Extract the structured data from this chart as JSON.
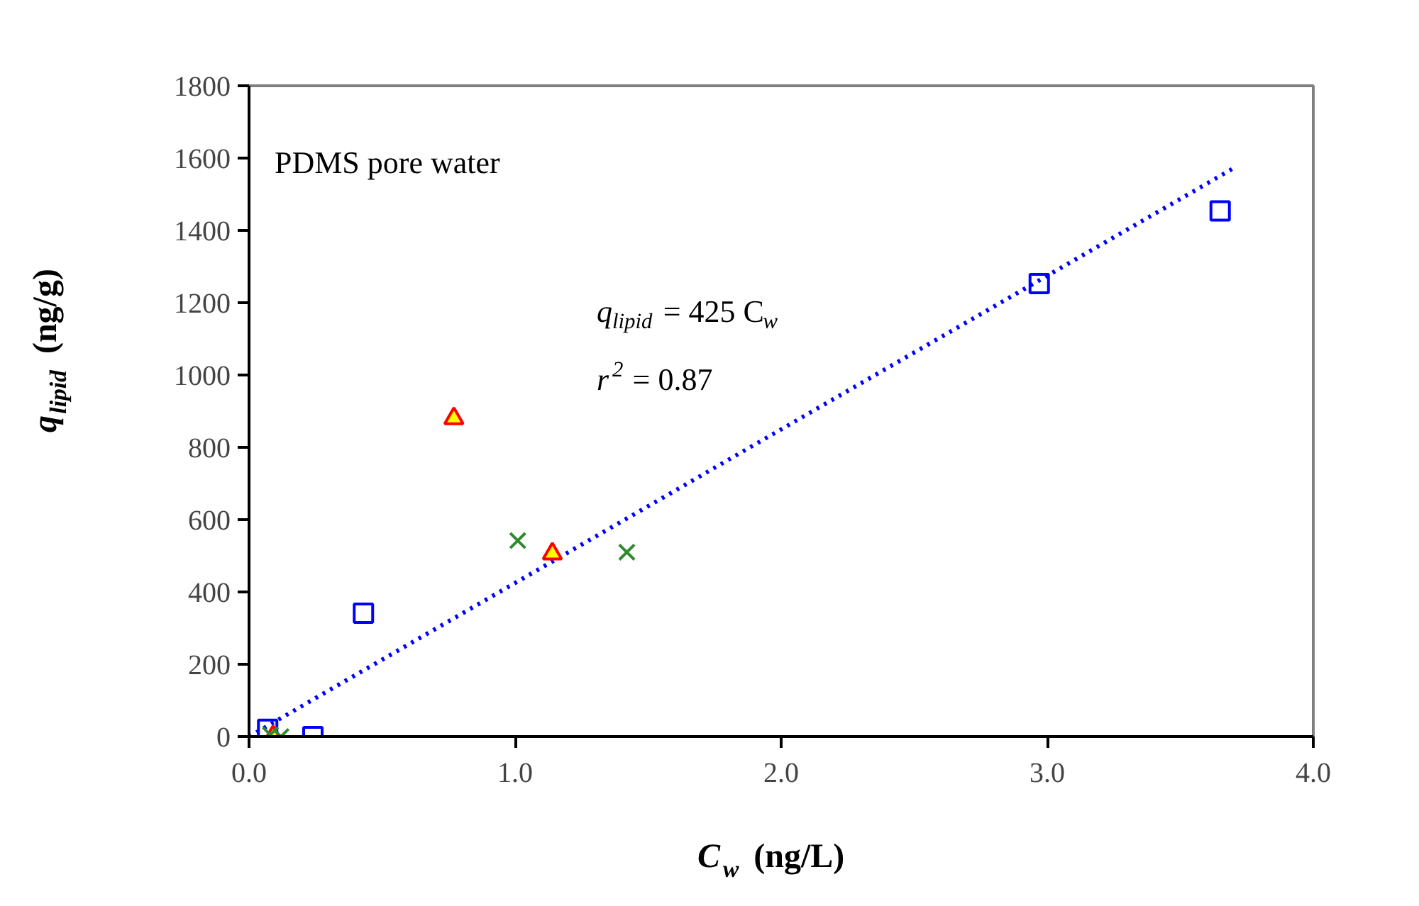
{
  "chart_data": {
    "type": "scatter",
    "xlabel": "C$_{w}$ (ng/L)",
    "ylabel": "q$_{lipid}$ (ng/g)",
    "annotations": [
      "PDMS pore water",
      "q$_{lipid}$ = 425 C$_{w}$",
      "r$^{2}$ = 0.87"
    ],
    "series": [
      {
        "color": "#0000ff",
        "marker": "square",
        "x": [
          0.07,
          0.24,
          0.43,
          2.97,
          3.65
        ],
        "values": [
          20,
          0,
          341,
          1253,
          1454
        ]
      },
      {
        "color": "#ff0000",
        "marker": "triangle",
        "x": [
          0.09,
          0.77,
          1.14
        ],
        "values": [
          0,
          880,
          506
        ]
      },
      {
        "color": "#2e8b2e",
        "marker": "cross",
        "x": [
          0.08,
          0.12,
          1.01,
          1.42
        ],
        "values": [
          5,
          0,
          542,
          510
        ]
      },
      {
        "type": "line",
        "color": "#0000ff",
        "line_style": "dotted",
        "x": [
          0,
          3.7
        ],
        "values": [
          0,
          1572
        ]
      }
    ],
    "xlim": [
      0,
      4
    ],
    "ylim": [
      0,
      1800
    ],
    "xticks": [
      {
        "value": 0,
        "label": "0.0"
      },
      {
        "value": 1,
        "label": "1.0"
      },
      {
        "value": 2,
        "label": "2.0"
      },
      {
        "value": 3,
        "label": "3.0"
      },
      {
        "value": 4,
        "label": "4.0"
      }
    ],
    "yticks": [
      0,
      200,
      400,
      600,
      800,
      1000,
      1200,
      1400,
      1600,
      1800
    ],
    "grid": false
  }
}
